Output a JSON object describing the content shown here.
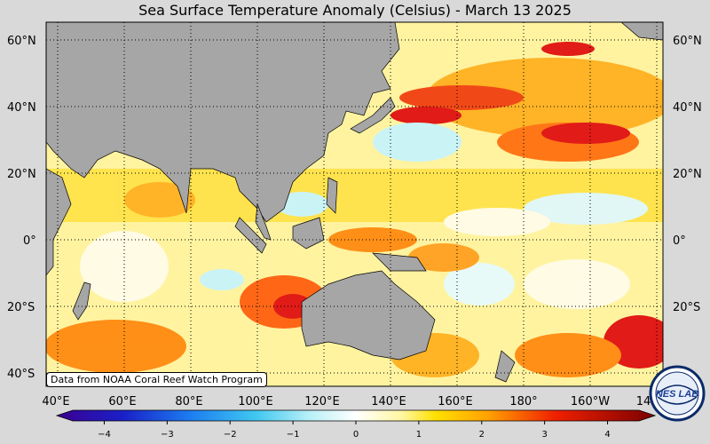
{
  "title": "Sea Surface Temperature Anomaly (Celsius) - March 13 2025",
  "credit": "Data from NOAA Coral Reef Watch Program",
  "logo_text": "NESDIS LAB",
  "lon_labels": [
    "40°E",
    "60°E",
    "80°E",
    "100°E",
    "120°E",
    "140°E",
    "160°E",
    "180°",
    "160°W",
    "14"
  ],
  "lat_labels": [
    "60°N",
    "40°N",
    "20°N",
    "0°",
    "20°S",
    "40°S"
  ],
  "colorbar": {
    "ticks": [
      "−4",
      "−3",
      "−2",
      "−1",
      "0",
      "1",
      "2",
      "3",
      "4"
    ],
    "min": -4.5,
    "max": 4.5,
    "stops": [
      {
        "v": -4.5,
        "c": "#3a0090"
      },
      {
        "v": -3.5,
        "c": "#1a20c8"
      },
      {
        "v": -2.5,
        "c": "#1c7cf0"
      },
      {
        "v": -1.5,
        "c": "#40c8f0"
      },
      {
        "v": -0.7,
        "c": "#b8f0f8"
      },
      {
        "v": 0.0,
        "c": "#ffffff"
      },
      {
        "v": 0.7,
        "c": "#fff7a0"
      },
      {
        "v": 1.2,
        "c": "#ffe000"
      },
      {
        "v": 2.0,
        "c": "#ffa000"
      },
      {
        "v": 3.0,
        "c": "#f02000"
      },
      {
        "v": 4.5,
        "c": "#7a0000"
      }
    ]
  },
  "colors": {
    "land": "#a6a6a6",
    "warm": "#ffd800",
    "hot": "#ff7a00",
    "very_hot": "#e01010",
    "cool": "#c8f4fb",
    "neutral": "#fffdf0"
  }
}
